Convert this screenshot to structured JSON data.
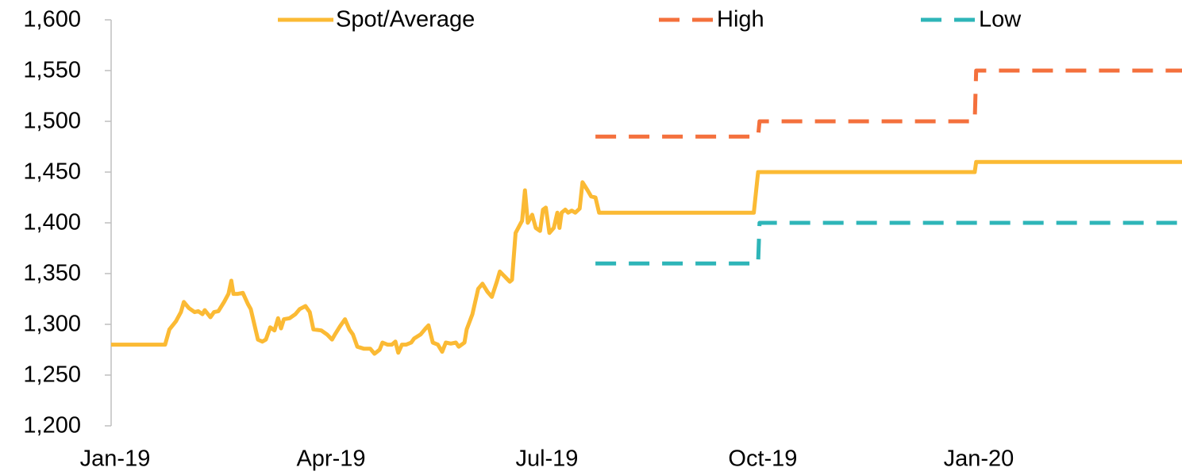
{
  "chart_data": {
    "type": "line",
    "xlim": [
      0,
      14.88
    ],
    "ylim": [
      1200,
      1600
    ],
    "xticks": [
      {
        "value": 0,
        "label": "Jan-19"
      },
      {
        "value": 3,
        "label": "Apr-19"
      },
      {
        "value": 6,
        "label": "Jul-19"
      },
      {
        "value": 9,
        "label": "Oct-19"
      },
      {
        "value": 12,
        "label": "Jan-20"
      }
    ],
    "yticks": [
      {
        "value": 1200,
        "label": "1,200"
      },
      {
        "value": 1250,
        "label": "1,250"
      },
      {
        "value": 1300,
        "label": "1,300"
      },
      {
        "value": 1350,
        "label": "1,350"
      },
      {
        "value": 1400,
        "label": "1,400"
      },
      {
        "value": 1450,
        "label": "1,450"
      },
      {
        "value": 1500,
        "label": "1,500"
      },
      {
        "value": 1550,
        "label": "1,550"
      },
      {
        "value": 1600,
        "label": "1,600"
      }
    ],
    "legend": "top",
    "series": [
      {
        "name": "Spot/Average",
        "color": "#FBBA34",
        "dash": "solid",
        "x": [
          0,
          0.75,
          0.81,
          0.9,
          0.97,
          1.01,
          1.08,
          1.16,
          1.21,
          1.27,
          1.3,
          1.38,
          1.43,
          1.49,
          1.57,
          1.63,
          1.67,
          1.7,
          1.76,
          1.83,
          1.9,
          1.94,
          1.99,
          2.04,
          2.1,
          2.15,
          2.21,
          2.27,
          2.32,
          2.36,
          2.4,
          2.48,
          2.56,
          2.62,
          2.7,
          2.76,
          2.81,
          2.92,
          3.0,
          3.07,
          3.11,
          3.18,
          3.25,
          3.31,
          3.36,
          3.42,
          3.51,
          3.6,
          3.66,
          3.73,
          3.77,
          3.84,
          3.9,
          3.95,
          3.99,
          4.04,
          4.1,
          4.17,
          4.21,
          4.3,
          4.37,
          4.41,
          4.47,
          4.54,
          4.6,
          4.65,
          4.72,
          4.79,
          4.83,
          4.91,
          4.94,
          5.02,
          5.1,
          5.16,
          5.23,
          5.29,
          5.36,
          5.4,
          5.47,
          5.54,
          5.57,
          5.62,
          5.68,
          5.71,
          5.75,
          5.79,
          5.85,
          5.9,
          5.96,
          6.0,
          6.04,
          6.09,
          6.15,
          6.2,
          6.23,
          6.26,
          6.31,
          6.35,
          6.4,
          6.45,
          6.51,
          6.55,
          6.62,
          6.67,
          6.73,
          6.78,
          8.93,
          8.99,
          12.0,
          12.02,
          14.88
        ],
        "values": [
          1280,
          1280,
          1295,
          1303,
          1312,
          1322,
          1316,
          1312,
          1313,
          1310,
          1314,
          1307,
          1312,
          1313,
          1322,
          1330,
          1343,
          1330,
          1330,
          1331,
          1320,
          1315,
          1300,
          1285,
          1283,
          1285,
          1297,
          1294,
          1306,
          1296,
          1305,
          1306,
          1310,
          1315,
          1318,
          1312,
          1295,
          1294,
          1290,
          1285,
          1290,
          1298,
          1305,
          1295,
          1290,
          1278,
          1276,
          1276,
          1271,
          1275,
          1282,
          1280,
          1280,
          1283,
          1272,
          1280,
          1280,
          1282,
          1286,
          1290,
          1296,
          1299,
          1282,
          1280,
          1273,
          1282,
          1281,
          1282,
          1278,
          1282,
          1295,
          1310,
          1335,
          1340,
          1332,
          1327,
          1342,
          1352,
          1347,
          1342,
          1344,
          1390,
          1398,
          1402,
          1432,
          1400,
          1408,
          1395,
          1392,
          1413,
          1415,
          1390,
          1395,
          1410,
          1395,
          1410,
          1413,
          1410,
          1412,
          1410,
          1414,
          1440,
          1432,
          1426,
          1425,
          1410,
          1410,
          1450,
          1450,
          1460,
          1460
        ]
      },
      {
        "name": "High",
        "color": "#F4703C",
        "dash": "dashed",
        "x": [
          6.73,
          8.99,
          9.01,
          12.0,
          12.02,
          14.88
        ],
        "values": [
          1485,
          1485,
          1500,
          1500,
          1550,
          1550
        ]
      },
      {
        "name": "Low",
        "color": "#2EB5B8",
        "dash": "dashed",
        "x": [
          6.73,
          8.99,
          9.01,
          14.88
        ],
        "values": [
          1360,
          1360,
          1400,
          1400
        ]
      }
    ]
  }
}
